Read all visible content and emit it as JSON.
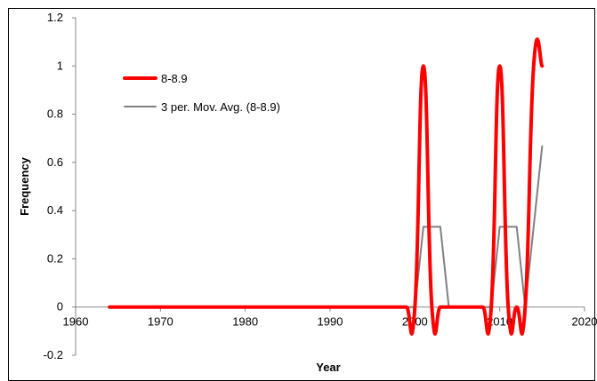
{
  "chart_data": {
    "type": "line",
    "title": "",
    "xlabel": "Year",
    "ylabel": "Frequency",
    "xlim": [
      1960,
      2020
    ],
    "ylim": [
      -0.2,
      1.2
    ],
    "x_ticks": [
      1960,
      1970,
      1980,
      1990,
      2000,
      2010,
      2020
    ],
    "y_ticks": [
      -0.2,
      0,
      0.2,
      0.4,
      0.6,
      0.8,
      1,
      1.2
    ],
    "grid": false,
    "legend_position": "upper-left",
    "series": [
      {
        "name": "8-8.9",
        "color": "#ff0000",
        "smooth": true,
        "x": [
          1964,
          1965,
          1966,
          1967,
          1968,
          1969,
          1970,
          1971,
          1972,
          1973,
          1974,
          1975,
          1976,
          1977,
          1978,
          1979,
          1980,
          1981,
          1982,
          1983,
          1984,
          1985,
          1986,
          1987,
          1988,
          1989,
          1990,
          1991,
          1992,
          1993,
          1994,
          1995,
          1996,
          1997,
          1998,
          1999,
          2000,
          2001,
          2002,
          2003,
          2004,
          2005,
          2006,
          2007,
          2008,
          2009,
          2010,
          2011,
          2012,
          2013,
          2014,
          2015
        ],
        "y": [
          0,
          0,
          0,
          0,
          0,
          0,
          0,
          0,
          0,
          0,
          0,
          0,
          0,
          0,
          0,
          0,
          0,
          0,
          0,
          0,
          0,
          0,
          0,
          0,
          0,
          0,
          0,
          0,
          0,
          0,
          0,
          0,
          0,
          0,
          0,
          0,
          0,
          1,
          0,
          0,
          0,
          0,
          0,
          0,
          0,
          0,
          1,
          0,
          0,
          0,
          1,
          1
        ]
      },
      {
        "name": "3 per. Mov. Avg. (8-8.9)",
        "color": "#808080",
        "smooth": false,
        "x": [
          1966,
          1967,
          1968,
          1969,
          1970,
          1971,
          1972,
          1973,
          1974,
          1975,
          1976,
          1977,
          1978,
          1979,
          1980,
          1981,
          1982,
          1983,
          1984,
          1985,
          1986,
          1987,
          1988,
          1989,
          1990,
          1991,
          1992,
          1993,
          1994,
          1995,
          1996,
          1997,
          1998,
          1999,
          2000,
          2001,
          2002,
          2003,
          2004,
          2005,
          2006,
          2007,
          2008,
          2009,
          2010,
          2011,
          2012,
          2013,
          2014,
          2015
        ],
        "y": [
          0,
          0,
          0,
          0,
          0,
          0,
          0,
          0,
          0,
          0,
          0,
          0,
          0,
          0,
          0,
          0,
          0,
          0,
          0,
          0,
          0,
          0,
          0,
          0,
          0,
          0,
          0,
          0,
          0,
          0,
          0,
          0,
          0,
          0,
          0,
          0.333,
          0.333,
          0.333,
          0,
          0,
          0,
          0,
          0,
          0,
          0.333,
          0.333,
          0.333,
          0,
          0.333,
          0.667
        ]
      }
    ]
  }
}
